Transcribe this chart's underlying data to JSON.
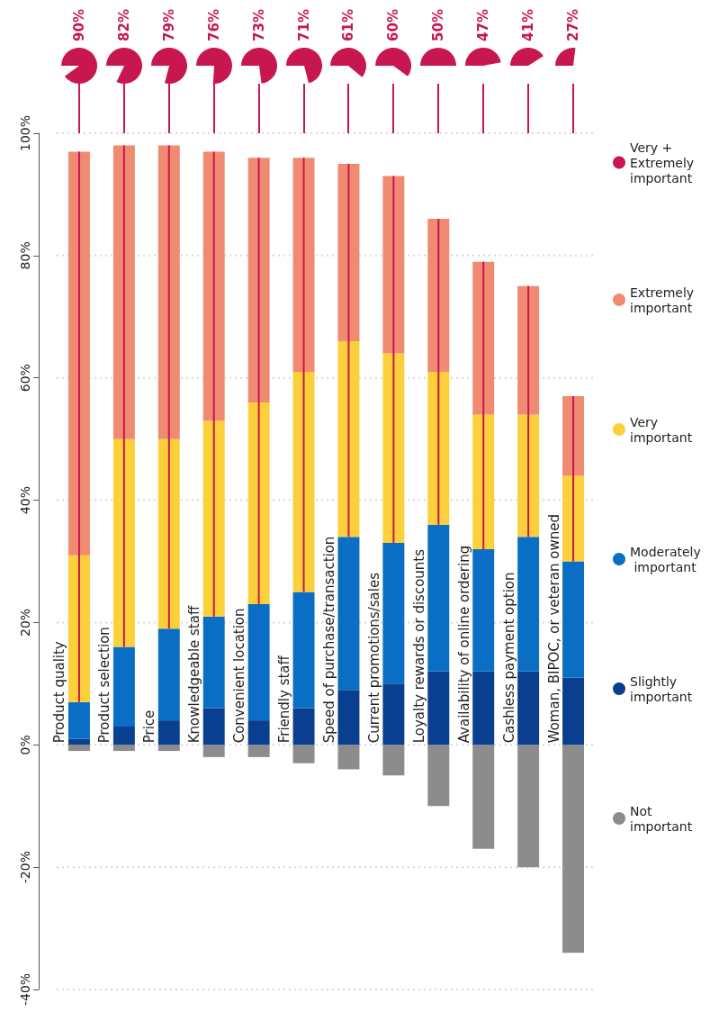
{
  "chart_data": {
    "type": "bar",
    "categories": [
      "Product quality",
      "Product selection",
      "Price",
      "Knowledgeable staff",
      "Convenient location",
      "Friendly staff",
      "Speed of purchase/transaction",
      "Current promotions/sales",
      "Loyalty rewards or discounts",
      "Availability of online ordering",
      "Cashless payment option",
      "Woman, BIPOC, or veteran owned"
    ],
    "series": [
      {
        "name": "Not important",
        "color": "#8c8c8c",
        "base": [
          0,
          0,
          0,
          0,
          0,
          0,
          0,
          0,
          0,
          0,
          0,
          0
        ],
        "values": [
          -1,
          -1,
          -1,
          -2,
          -2,
          -3,
          -4,
          -5,
          -10,
          -17,
          -20,
          -34
        ]
      },
      {
        "name": "Slightly important",
        "color": "#0a3f8f",
        "base": [
          0,
          0,
          0,
          0,
          0,
          0,
          0,
          0,
          0,
          0,
          0,
          0
        ],
        "values": [
          1,
          3,
          4,
          6,
          4,
          6,
          9,
          10,
          12,
          12,
          12,
          11
        ]
      },
      {
        "name": "Moderately important",
        "color": "#0a6fc4",
        "base": [
          1,
          3,
          4,
          6,
          4,
          6,
          9,
          10,
          12,
          12,
          12,
          11
        ],
        "values": [
          6,
          13,
          15,
          15,
          19,
          19,
          25,
          23,
          24,
          20,
          22,
          19
        ]
      },
      {
        "name": "Very important",
        "color": "#fcd03a",
        "base": [
          7,
          16,
          19,
          21,
          23,
          25,
          34,
          33,
          36,
          32,
          34,
          30
        ],
        "values": [
          24,
          34,
          31,
          32,
          33,
          36,
          32,
          31,
          25,
          22,
          20,
          14
        ]
      },
      {
        "name": "Extremely important",
        "color": "#f08a70",
        "base": [
          31,
          50,
          50,
          53,
          56,
          61,
          66,
          64,
          61,
          54,
          54,
          44
        ],
        "values": [
          66,
          48,
          48,
          44,
          40,
          35,
          29,
          29,
          25,
          25,
          21,
          13
        ]
      },
      {
        "name": "Very + Extremely important",
        "type": "bar",
        "color": "#c8174f",
        "base": [
          7,
          16,
          19,
          21,
          23,
          25,
          34,
          33,
          36,
          32,
          34,
          30
        ],
        "values": [
          90,
          82,
          79,
          76,
          73,
          71,
          61,
          60,
          50,
          47,
          41,
          27
        ],
        "value_labels": [
          "90%",
          "82%",
          "79%",
          "76%",
          "73%",
          "71%",
          "61%",
          "60%",
          "50%",
          "47%",
          "41%",
          "27%"
        ]
      }
    ],
    "ylim": [
      -40,
      100
    ],
    "yticks": [
      {
        "value": -40,
        "label": "-40%"
      },
      {
        "value": -20,
        "label": "-20%"
      },
      {
        "value": 0,
        "label": "0%"
      },
      {
        "value": 20,
        "label": "20%"
      },
      {
        "value": 40,
        "label": "40%"
      },
      {
        "value": 60,
        "label": "60%"
      },
      {
        "value": 80,
        "label": "80%"
      },
      {
        "value": 100,
        "label": "100%"
      }
    ],
    "grid": "y",
    "legend": "right"
  }
}
